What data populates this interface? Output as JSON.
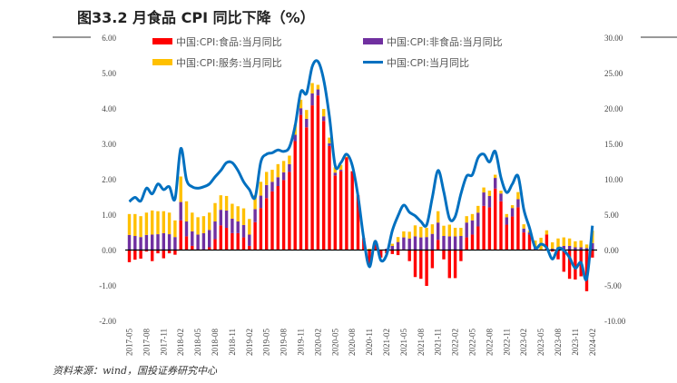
{
  "title": "图33.2 月食品 CPI 同比下降（%）",
  "footer": "资料来源：wind，国投证券研究中心",
  "chart_data": {
    "type": "bar",
    "title": "图33.2 月食品 CPI 同比下降（%）",
    "left_axis": {
      "range": [
        -2,
        6
      ],
      "ticks": [
        "6.00",
        "5.00",
        "4.00",
        "3.00",
        "2.00",
        "1.00",
        "0.00",
        "-1.00",
        "-2.00"
      ]
    },
    "right_axis": {
      "range": [
        -10,
        30
      ],
      "ticks": [
        "30.00",
        "25.00",
        "20.00",
        "15.00",
        "10.00",
        "5.00",
        "0.00",
        "-5.00",
        "-10.00"
      ]
    },
    "x_start": "2017-05",
    "x_tick_labels": [
      "2017-05",
      "2017-08",
      "2017-11",
      "2018-02",
      "2018-05",
      "2018-08",
      "2018-11",
      "2019-02",
      "2019-05",
      "2019-08",
      "2019-11",
      "2020-02",
      "2020-05",
      "2020-08",
      "2020-11",
      "2021-02",
      "2021-05",
      "2021-08",
      "2021-11",
      "2022-02",
      "2022-05",
      "2022-08",
      "2022-11",
      "2023-02",
      "2023-05",
      "2023-08",
      "2023-11",
      "2024-02"
    ],
    "legend": [
      "中国:CPI:食品:当月同比",
      "中国:CPI:非食品:当月同比",
      "中国:CPI:服务:当月同比",
      "中国:CPI:当月同比"
    ],
    "legend_placement": "top",
    "colors": {
      "food": "#ff0000",
      "nonfood": "#7030a0",
      "service": "#ffc000",
      "cpi": "#0070c0"
    },
    "series": [
      {
        "name": "中国:CPI:食品:当月同比",
        "axis": "left",
        "type": "stacked-bar",
        "values": [
          -0.33,
          -0.26,
          -0.23,
          -0.03,
          -0.3,
          -0.08,
          -0.22,
          -0.08,
          -0.12,
          0.85,
          0.4,
          0.13,
          0.0,
          0.03,
          0.09,
          0.32,
          0.71,
          0.64,
          0.49,
          0.49,
          0.37,
          0.13,
          0.8,
          1.2,
          1.48,
          1.67,
          1.82,
          1.99,
          2.22,
          3.09,
          3.83,
          3.48,
          4.1,
          4.38,
          3.66,
          2.95,
          2.12,
          2.24,
          2.63,
          2.24,
          1.56,
          0.35,
          -0.45,
          0.21,
          -0.2,
          -0.08,
          -0.1,
          -0.13,
          0.03,
          -0.3,
          -0.75,
          -0.8,
          -1.0,
          -0.5,
          0.3,
          -0.25,
          -0.78,
          -0.78,
          -0.3,
          0.37,
          0.45,
          0.68,
          1.26,
          1.22,
          1.75,
          1.39,
          0.73,
          0.96,
          1.22,
          0.51,
          0.45,
          0.03,
          0.02,
          0.45,
          -0.03,
          -0.25,
          -0.6,
          -0.8,
          -0.82,
          -0.73,
          -1.15,
          -0.2
        ]
      },
      {
        "name": "中国:CPI:非食品:当月同比",
        "axis": "left",
        "type": "stacked-bar",
        "values": [
          0.44,
          0.41,
          0.38,
          0.44,
          0.45,
          0.46,
          0.49,
          0.46,
          0.38,
          0.52,
          0.42,
          0.41,
          0.45,
          0.46,
          0.49,
          0.5,
          0.44,
          0.49,
          0.41,
          0.33,
          0.35,
          0.32,
          0.37,
          0.35,
          0.37,
          0.27,
          0.25,
          0.22,
          0.22,
          0.18,
          0.19,
          0.24,
          0.34,
          0.17,
          0.13,
          0.08,
          0.08,
          0.04,
          0.0,
          0.0,
          0.0,
          0.0,
          0.0,
          0.04,
          0.0,
          0.05,
          0.13,
          0.24,
          0.34,
          0.34,
          0.4,
          0.37,
          0.38,
          0.47,
          0.49,
          0.41,
          0.4,
          0.4,
          0.41,
          0.42,
          0.4,
          0.39,
          0.38,
          0.32,
          0.3,
          0.22,
          0.21,
          0.24,
          0.23,
          0.11,
          0.06,
          0.05,
          0.0,
          0.0,
          0.05,
          0.09,
          0.13,
          0.13,
          0.09,
          0.09,
          0.07,
          0.21
        ]
      },
      {
        "name": "中国:CPI:服务:当月同比",
        "axis": "left",
        "type": "stacked-bar",
        "values": [
          0.59,
          0.62,
          0.59,
          0.63,
          0.68,
          0.65,
          0.62,
          0.61,
          0.47,
          0.72,
          0.57,
          0.53,
          0.49,
          0.48,
          0.49,
          0.52,
          0.41,
          0.41,
          0.42,
          0.43,
          0.47,
          0.44,
          0.39,
          0.39,
          0.37,
          0.34,
          0.37,
          0.32,
          0.24,
          0.28,
          0.24,
          0.25,
          0.29,
          0.13,
          0.21,
          0.16,
          0.15,
          0.14,
          0.02,
          0.0,
          0.0,
          0.0,
          0.05,
          0.03,
          0.0,
          0.0,
          0.06,
          0.14,
          0.17,
          0.19,
          0.31,
          0.3,
          0.26,
          0.27,
          0.32,
          0.29,
          0.33,
          0.24,
          0.23,
          0.18,
          0.18,
          0.19,
          0.14,
          0.15,
          0.09,
          0.08,
          0.09,
          0.08,
          0.2,
          0.12,
          0.05,
          0.2,
          0.34,
          0.12,
          0.18,
          0.25,
          0.24,
          0.21,
          0.17,
          0.19,
          0.1,
          0.35
        ]
      },
      {
        "name": "中国:CPI:当月同比",
        "axis": "right",
        "type": "line",
        "values": [
          6.9,
          7.5,
          7.0,
          8.8,
          8.0,
          9.4,
          8.6,
          9.0,
          7.3,
          14.4,
          10.0,
          9.0,
          8.8,
          9.0,
          9.4,
          10.4,
          11.3,
          12.4,
          12.4,
          11.3,
          9.7,
          8.6,
          7.5,
          12.5,
          13.6,
          13.8,
          14.2,
          14.0,
          14.6,
          17.6,
          22.4,
          22.2,
          26.0,
          26.7,
          24.1,
          18.9,
          12.0,
          12.4,
          13.6,
          12.0,
          7.7,
          1.7,
          -2.3,
          1.3,
          -1.4,
          -0.6,
          2.8,
          4.9,
          6.4,
          5.4,
          4.9,
          4.1,
          3.6,
          7.5,
          11.3,
          8.3,
          4.5,
          4.8,
          8.0,
          10.5,
          10.7,
          13.1,
          13.6,
          12.5,
          14.0,
          10.3,
          8.2,
          9.4,
          10.5,
          5.8,
          3.2,
          0.4,
          0.9,
          0.4,
          -1.2,
          0.3,
          0.0,
          -1.0,
          -2.5,
          -1.7,
          -4.0,
          3.5
        ]
      }
    ]
  }
}
